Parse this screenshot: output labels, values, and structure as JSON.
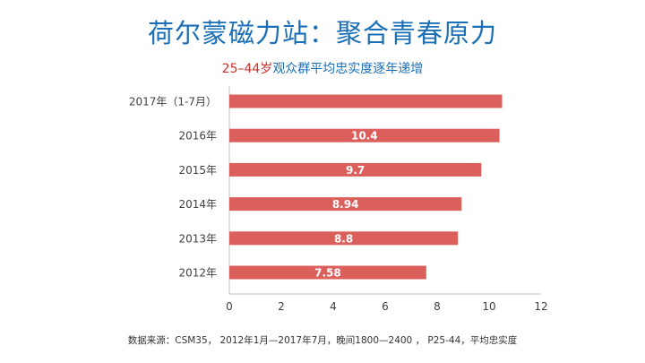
{
  "title": "荷尔蒙磁力站：聚合青春原力",
  "subtitle_highlight": "25–44岁",
  "subtitle_rest": "观众群平均忠实度逐年递增",
  "source": "数据来源：CSM35， 2012年1月—2017年7月，晚间1800—2400 ， P25-44，平均忠实度",
  "colors": {
    "title": "#1b6fb6",
    "subtitle_highlight": "#c8302a",
    "bar": "#db5f5b",
    "bar_label": "#ffffff",
    "axis": "#bfbfbf",
    "text": "#404040"
  },
  "chart_data": {
    "type": "bar",
    "orientation": "horizontal",
    "categories": [
      "2017年（1-7月）",
      "2016年",
      "2015年",
      "2014年",
      "2013年",
      "2012年"
    ],
    "values": [
      10.5,
      10.4,
      9.7,
      8.94,
      8.8,
      7.58
    ],
    "data_labels": [
      "",
      "10.4",
      "9.7",
      "8.94",
      "8.8",
      "7.58"
    ],
    "xlim": [
      0,
      12
    ],
    "xticks": [
      "0",
      "2",
      "4",
      "6",
      "8",
      "10",
      "12"
    ],
    "grid": false,
    "legend": "none"
  }
}
